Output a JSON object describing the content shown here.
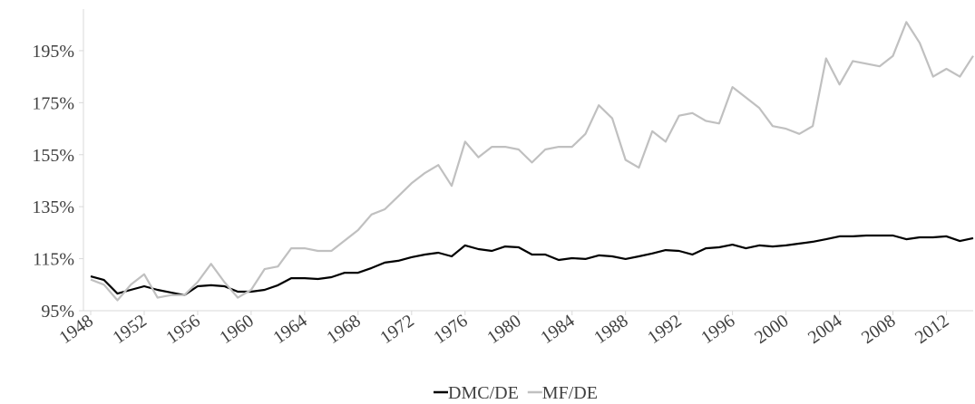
{
  "chart_data": {
    "type": "line",
    "x": [
      1948,
      1949,
      1950,
      1951,
      1952,
      1953,
      1954,
      1955,
      1956,
      1957,
      1958,
      1959,
      1960,
      1961,
      1962,
      1963,
      1964,
      1965,
      1966,
      1967,
      1968,
      1969,
      1970,
      1971,
      1972,
      1973,
      1974,
      1975,
      1976,
      1977,
      1978,
      1979,
      1980,
      1981,
      1982,
      1983,
      1984,
      1985,
      1986,
      1987,
      1988,
      1989,
      1990,
      1991,
      1992,
      1993,
      1994,
      1995,
      1996,
      1997,
      1998,
      1999,
      2000,
      2001,
      2002,
      2003,
      2004,
      2005,
      2006,
      2007,
      2008,
      2009,
      2010,
      2011,
      2012,
      2013,
      2014
    ],
    "series": [
      {
        "name": "DMC/DE",
        "color": "#000000",
        "values": [
          108.2,
          106.8,
          101.6,
          103,
          104.4,
          103,
          102,
          101,
          104.4,
          104.8,
          104.4,
          102.3,
          102.3,
          103,
          104.8,
          107.5,
          107.5,
          107.2,
          107.9,
          109.6,
          109.6,
          111.4,
          113.5,
          114.2,
          115.6,
          116.6,
          117.3,
          115.9,
          120.1,
          118.7,
          118,
          119.7,
          119.4,
          116.6,
          116.6,
          114.5,
          115.2,
          114.9,
          116.3,
          115.9,
          114.9,
          115.9,
          117,
          118.3,
          118,
          116.6,
          119,
          119.4,
          120.4,
          119,
          120.1,
          119.7,
          120.1,
          120.8,
          121.5,
          122.5,
          123.6,
          123.6,
          123.9,
          123.9,
          123.9,
          122.5,
          123.2,
          123.2,
          123.6,
          121.8,
          122.9
        ]
      },
      {
        "name": "MF/DE",
        "color": "#c0c0c0",
        "values": [
          107,
          105,
          99,
          105,
          109,
          100,
          101,
          101,
          106,
          113,
          106,
          100,
          103,
          111,
          112,
          119,
          119,
          118,
          118,
          122,
          126,
          132,
          134,
          139,
          144,
          148,
          151,
          143,
          160,
          154,
          158,
          158,
          157,
          152,
          157,
          158,
          158,
          163,
          174,
          169,
          153,
          150,
          164,
          160,
          170,
          171,
          168,
          167,
          181,
          177,
          173,
          166,
          165,
          163,
          166,
          192,
          182,
          191,
          190,
          189,
          193,
          206,
          198,
          185,
          188,
          185,
          193
        ]
      }
    ],
    "xlim": [
      1948,
      2014
    ],
    "xticks": [
      1948,
      1952,
      1956,
      1960,
      1964,
      1968,
      1972,
      1976,
      1980,
      1984,
      1988,
      1992,
      1996,
      2000,
      2004,
      2008,
      2012
    ],
    "ylim": [
      95,
      211
    ],
    "yticks": [
      {
        "value": 95,
        "label": "95%"
      },
      {
        "value": 115,
        "label": "115%"
      },
      {
        "value": 135,
        "label": "135%"
      },
      {
        "value": 155,
        "label": "155%"
      },
      {
        "value": 175,
        "label": "175%"
      },
      {
        "value": 195,
        "label": "195%"
      }
    ],
    "legend": "bottom"
  }
}
